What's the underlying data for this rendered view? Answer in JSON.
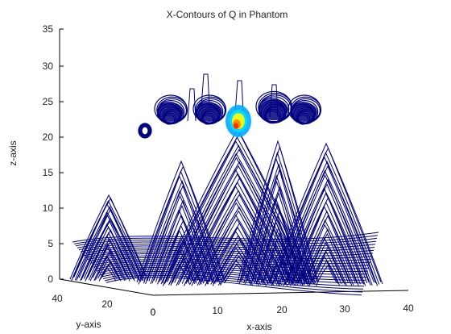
{
  "chart_data": {
    "type": "contour3d",
    "title": "X-Contours of Q in Phantom",
    "xlabel": "x-axis",
    "ylabel": "y-axis",
    "zlabel": "z-axis",
    "xlim": [
      0,
      40
    ],
    "ylim": [
      0,
      40
    ],
    "zlim": [
      0,
      35
    ],
    "x_ticks": [
      "0",
      "10",
      "20",
      "30",
      "40"
    ],
    "y_ticks": [
      "40",
      "20",
      "0"
    ],
    "z_ticks": [
      "0",
      "5",
      "10",
      "15",
      "20",
      "25",
      "30",
      "35"
    ],
    "grid": false,
    "colormap": "jet",
    "colors": {
      "low": "#000080",
      "mid": "#00aaff",
      "midhigh": "#ffff00",
      "high": "#ff2000",
      "axis": "#000000"
    }
  }
}
